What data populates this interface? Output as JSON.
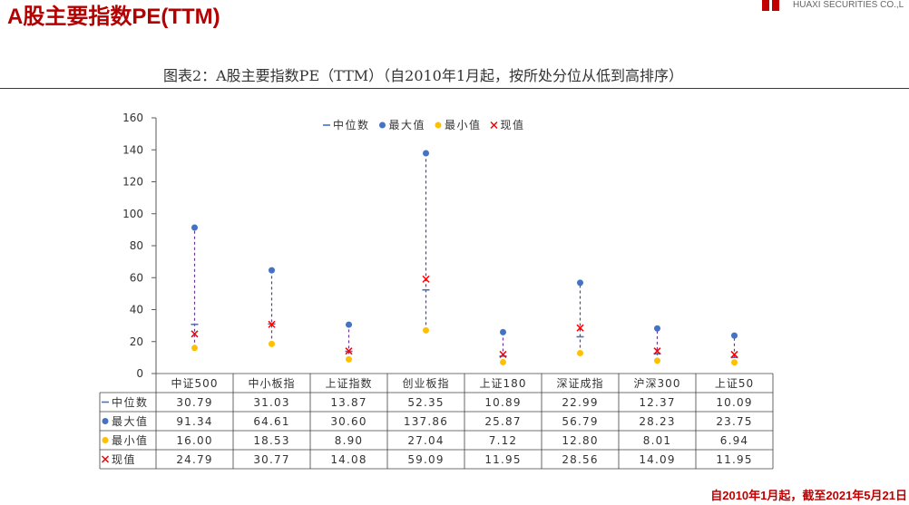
{
  "header": {
    "title": "A股主要指数PE(TTM)",
    "company_name": "HUAXI SECURITIES CO.,L"
  },
  "figure": {
    "caption": "图表2：A股主要指数PE（TTM）（自2010年1月起，按所处分位从低到高排序）",
    "footnote": "自2010年1月起，截至2021年5月21日"
  },
  "colors": {
    "brand_red": "#c00000",
    "range_line": "#7030a0"
  },
  "chart_data": {
    "type": "scatter",
    "categories": [
      "中证500",
      "中小板指",
      "上证指数",
      "创业板指",
      "上证180",
      "深证成指",
      "沪深300",
      "上证50"
    ],
    "series": [
      {
        "name": "中位数",
        "marker": "dash",
        "color": "#4472c4",
        "values": [
          30.79,
          31.03,
          13.87,
          52.35,
          10.89,
          22.99,
          12.37,
          10.09
        ]
      },
      {
        "name": "最大值",
        "marker": "circle",
        "color": "#4472c4",
        "values": [
          91.34,
          64.61,
          30.6,
          137.86,
          25.87,
          56.79,
          28.23,
          23.75
        ]
      },
      {
        "name": "最小值",
        "marker": "circle",
        "color": "#ffc000",
        "values": [
          16.0,
          18.53,
          8.9,
          27.04,
          7.12,
          12.8,
          8.01,
          6.94
        ]
      },
      {
        "name": "现值",
        "marker": "cross",
        "color": "#ff0000",
        "values": [
          24.79,
          30.77,
          14.08,
          59.09,
          11.95,
          28.56,
          14.09,
          11.95
        ]
      }
    ],
    "ylim": [
      0,
      160
    ],
    "yticks": [
      0,
      20,
      40,
      60,
      80,
      100,
      120,
      140,
      160
    ],
    "grid": false,
    "legend": "top"
  }
}
